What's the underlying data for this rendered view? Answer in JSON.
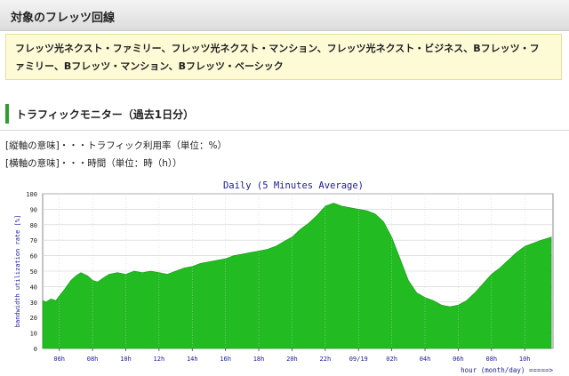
{
  "header": {
    "title": "対象のフレッツ回線"
  },
  "services": {
    "line1": "フレッツ光ネクスト・ファミリー、フレッツ光ネクスト・マンション、フレッツ光ネクスト・ビジネス、Bフレッツ・フ",
    "line2": "ァミリー、Bフレッツ・マンション、Bフレッツ・ベーシック"
  },
  "monitor": {
    "heading": "トラフィックモニター（過去1日分）",
    "y_legend": "[縦軸の意味]・・・トラフィック利用率（単位：%）",
    "x_legend": "[横軸の意味]・・・時間（単位：時（h））"
  },
  "colors": {
    "fill": "#22bb22",
    "title_blue": "#1a1a99",
    "axis_label_blue": "#1a1a99"
  },
  "chart_data": {
    "type": "area",
    "title": "Daily (5 Minutes Average)",
    "ylabel": "bandwidth utilization rate [%]",
    "xlabel": "hour (month/day) =====>",
    "ylim": [
      0,
      100
    ],
    "y_ticks": [
      "0",
      "10",
      "20",
      "30",
      "40",
      "50",
      "60",
      "70",
      "80",
      "90",
      "100"
    ],
    "x_ticks": [
      "06h",
      "08h",
      "10h",
      "12h",
      "14h",
      "16h",
      "18h",
      "20h",
      "22h",
      "09/19",
      "02h",
      "04h",
      "06h",
      "08h",
      "10h"
    ],
    "x_hours_offset_start": 5.0,
    "x": [
      5.0,
      5.2,
      5.5,
      5.8,
      6.0,
      6.3,
      6.7,
      7.0,
      7.3,
      7.7,
      8.0,
      8.3,
      8.7,
      9.0,
      9.5,
      10.0,
      10.5,
      11.0,
      11.5,
      12.0,
      12.5,
      13.0,
      13.5,
      14.0,
      14.5,
      15.0,
      15.5,
      16.0,
      16.5,
      17.0,
      17.5,
      18.0,
      18.5,
      19.0,
      19.5,
      20.0,
      20.5,
      21.0,
      21.5,
      22.0,
      22.5,
      23.0,
      23.5,
      24.0,
      24.5,
      25.0,
      25.5,
      26.0,
      26.5,
      27.0,
      27.5,
      28.0,
      28.5,
      29.0,
      29.5,
      30.0,
      30.5,
      31.0,
      31.5,
      32.0,
      32.5,
      33.0,
      33.5,
      34.0,
      34.5,
      35.0,
      35.3,
      35.6
    ],
    "values": [
      31,
      30,
      32,
      31,
      34,
      38,
      44,
      47,
      49,
      47,
      44,
      43,
      46,
      48,
      49,
      48,
      50,
      49,
      50,
      49,
      48,
      50,
      52,
      53,
      55,
      56,
      57,
      58,
      60,
      61,
      62,
      63,
      64,
      66,
      69,
      72,
      77,
      81,
      86,
      92,
      94,
      92,
      91,
      90,
      89,
      87,
      82,
      72,
      58,
      44,
      36,
      33,
      31,
      28,
      27,
      28,
      31,
      36,
      42,
      48,
      52,
      57,
      62,
      66,
      68,
      70,
      71,
      72
    ]
  }
}
